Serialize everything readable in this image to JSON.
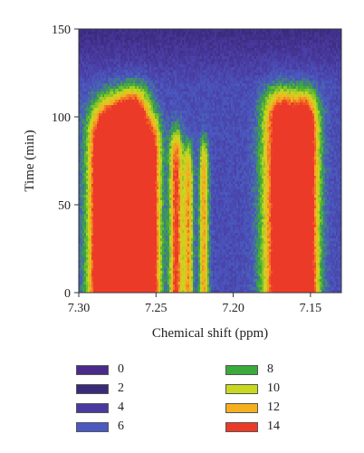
{
  "chart_data": {
    "type": "heatmap",
    "xlabel": "Chemical shift (ppm)",
    "ylabel": "Time (min)",
    "xlim": [
      7.3,
      7.13
    ],
    "ylim": [
      0,
      150
    ],
    "x_reversed": true,
    "xticks": [
      7.3,
      7.25,
      7.2,
      7.15
    ],
    "xtick_labels": [
      "7.30",
      "7.25",
      "7.20",
      "7.15"
    ],
    "yticks": [
      0,
      50,
      100,
      150
    ],
    "ytick_labels": [
      "0",
      "50",
      "100",
      "150"
    ],
    "grid": false,
    "legend_placement": "bottom",
    "colorbar": [
      {
        "value": 0,
        "label": "0",
        "color": "#4a2a8a"
      },
      {
        "value": 2,
        "label": "2",
        "color": "#3a2a7a"
      },
      {
        "value": 4,
        "label": "4",
        "color": "#4a3aa0"
      },
      {
        "value": 6,
        "label": "6",
        "color": "#4a5ac0"
      },
      {
        "value": 8,
        "label": "8",
        "color": "#3aaa3a"
      },
      {
        "value": 10,
        "label": "10",
        "color": "#c8d820"
      },
      {
        "value": 12,
        "label": "12",
        "color": "#f4b020"
      },
      {
        "value": 14,
        "label": "14",
        "color": "#ec3a28"
      }
    ],
    "peaks": [
      {
        "shift": 7.278,
        "width": 0.0095,
        "end_time": 108,
        "intensity": 15
      },
      {
        "shift": 7.264,
        "width": 0.007,
        "end_time": 112,
        "intensity": 15
      },
      {
        "shift": 7.286,
        "width": 0.005,
        "end_time": 95,
        "intensity": 9
      },
      {
        "shift": 7.252,
        "width": 0.004,
        "end_time": 96,
        "intensity": 11
      },
      {
        "shift": 7.237,
        "width": 0.003,
        "end_time": 90,
        "intensity": 12
      },
      {
        "shift": 7.229,
        "width": 0.0022,
        "end_time": 82,
        "intensity": 10
      },
      {
        "shift": 7.219,
        "width": 0.0022,
        "end_time": 85,
        "intensity": 10
      },
      {
        "shift": 7.169,
        "width": 0.008,
        "end_time": 112,
        "intensity": 15
      },
      {
        "shift": 7.153,
        "width": 0.006,
        "end_time": 110,
        "intensity": 15
      }
    ]
  }
}
